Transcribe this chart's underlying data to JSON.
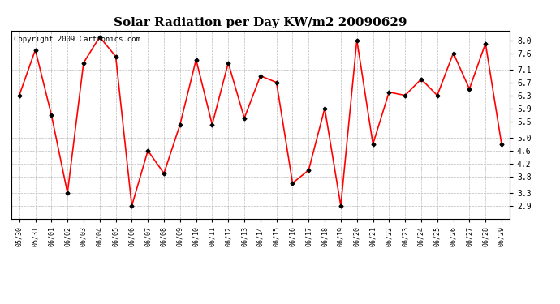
{
  "title": "Solar Radiation per Day KW/m2 20090629",
  "copyright": "Copyright 2009 Cartronics.com",
  "tick_labels": [
    "05/30",
    "05/31",
    "06/01",
    "06/02",
    "06/03",
    "06/04",
    "06/05",
    "06/06",
    "06/07",
    "06/08",
    "06/09",
    "06/10",
    "06/11",
    "06/12",
    "06/13",
    "06/14",
    "06/15",
    "06/16",
    "06/17",
    "06/18",
    "06/19",
    "06/20",
    "06/21",
    "06/22",
    "06/23",
    "06/24",
    "06/25",
    "06/26",
    "06/27",
    "06/28",
    "06/29"
  ],
  "values": [
    6.3,
    7.7,
    5.7,
    3.3,
    7.3,
    8.1,
    7.5,
    2.9,
    4.6,
    3.9,
    5.4,
    7.4,
    5.4,
    7.3,
    5.6,
    6.9,
    6.7,
    3.6,
    4.0,
    5.9,
    2.9,
    8.0,
    4.8,
    6.4,
    6.3,
    6.8,
    6.3,
    7.6,
    6.5,
    7.9,
    4.8
  ],
  "line_color": "#ff0000",
  "marker": "D",
  "marker_size": 2.5,
  "marker_color": "#000000",
  "line_width": 1.2,
  "ylim": [
    2.5,
    8.3
  ],
  "yticks": [
    2.9,
    3.3,
    3.8,
    4.2,
    4.6,
    5.0,
    5.5,
    5.9,
    6.3,
    6.7,
    7.1,
    7.6,
    8.0
  ],
  "grid_color": "#bbbbbb",
  "background_color": "#ffffff",
  "title_fontsize": 11,
  "copyright_fontsize": 6.5,
  "tick_fontsize": 6.0,
  "ytick_fontsize": 7.0
}
